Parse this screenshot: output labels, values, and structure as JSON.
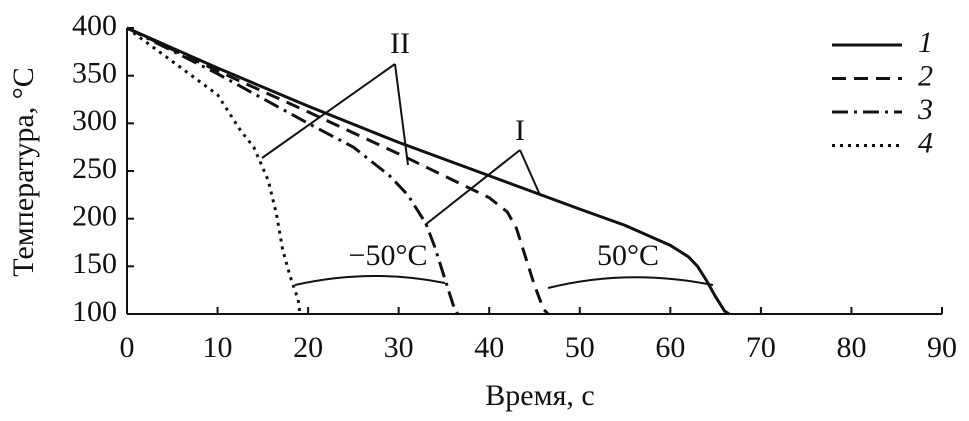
{
  "chart_data": {
    "type": "line",
    "x_label": "Время, с",
    "y_label": "Температура, °C",
    "xlim": [
      0,
      90
    ],
    "xticks": [
      0,
      10,
      20,
      30,
      40,
      50,
      60,
      70,
      80,
      90
    ],
    "ylim": [
      100,
      400
    ],
    "yticks": [
      100,
      150,
      200,
      250,
      300,
      350,
      400
    ],
    "legend": "upper right",
    "series": [
      {
        "name": "1",
        "color": "#111111",
        "dash": "solid",
        "x": [
          0,
          10,
          20,
          30,
          40,
          50,
          55,
          60,
          62,
          63,
          64,
          65,
          66,
          66.5
        ],
        "values": [
          400,
          358,
          318,
          280,
          245,
          210,
          193,
          172,
          160,
          150,
          135,
          118,
          103,
          100
        ]
      },
      {
        "name": "2",
        "color": "#111111",
        "dash": "dashed",
        "x": [
          0,
          10,
          20,
          30,
          40,
          42,
          43,
          44,
          45,
          46,
          46.5
        ],
        "values": [
          400,
          355,
          312,
          268,
          222,
          207,
          190,
          160,
          130,
          105,
          100
        ]
      },
      {
        "name": "3",
        "color": "#111111",
        "dash": "dashdot",
        "x": [
          0,
          10,
          20,
          25,
          29,
          31,
          33,
          34,
          35,
          36,
          36.5
        ],
        "values": [
          400,
          352,
          300,
          275,
          245,
          225,
          195,
          170,
          140,
          110,
          100
        ]
      },
      {
        "name": "4",
        "color": "#111111",
        "dash": "dotted",
        "x": [
          0,
          5,
          10,
          12.5,
          14,
          15.6,
          16.5,
          17.2,
          18,
          18.9,
          19.1
        ],
        "values": [
          400,
          365,
          330,
          293,
          275,
          240,
          205,
          167,
          140,
          115,
          100
        ]
      }
    ],
    "annotations": [
      "II",
      "I",
      "−50°C",
      "50°C"
    ]
  }
}
